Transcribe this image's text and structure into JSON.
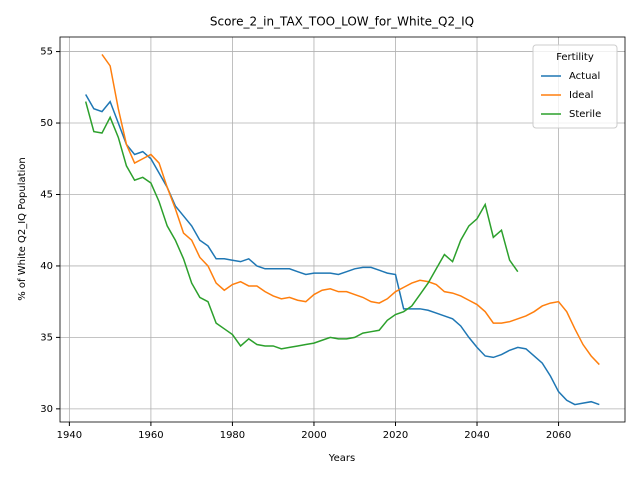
{
  "chart_data": {
    "type": "line",
    "title": "Score_2_in_TAX_TOO_LOW_for_White_Q2_IQ",
    "x_label": "Years",
    "y_label": "% of White Q2_IQ Population",
    "legend_title": "Fertility",
    "legend": "upper right",
    "grid": true,
    "x": [
      1944,
      1946,
      1948,
      1950,
      1952,
      1954,
      1956,
      1958,
      1960,
      1962,
      1964,
      1966,
      1968,
      1970,
      1972,
      1974,
      1976,
      1978,
      1980,
      1982,
      1984,
      1986,
      1988,
      1990,
      1992,
      1994,
      1996,
      1998,
      2000,
      2002,
      2004,
      2006,
      2008,
      2010,
      2012,
      2014,
      2016,
      2018,
      2020,
      2022,
      2024,
      2026,
      2028,
      2030,
      2032,
      2034,
      2036,
      2038,
      2040,
      2042,
      2044,
      2046,
      2048,
      2050,
      2052,
      2054,
      2056,
      2058,
      2060,
      2062,
      2064,
      2066,
      2068,
      2070
    ],
    "series": [
      {
        "name": "Actual",
        "color": "#1f77b4",
        "values": [
          52.0,
          51.0,
          50.8,
          51.5,
          50.0,
          48.5,
          47.8,
          48.0,
          47.5,
          46.5,
          45.5,
          44.2,
          43.5,
          42.8,
          41.8,
          41.4,
          40.5,
          40.5,
          40.4,
          40.3,
          40.5,
          40.0,
          39.8,
          39.8,
          39.8,
          39.8,
          39.6,
          39.4,
          39.5,
          39.5,
          39.5,
          39.4,
          39.6,
          39.8,
          39.9,
          39.9,
          39.7,
          39.5,
          39.4,
          37.0,
          37.0,
          37.0,
          36.9,
          36.7,
          36.5,
          36.3,
          35.8,
          35.0,
          34.3,
          33.7,
          33.6,
          33.8,
          34.1,
          34.3,
          34.2,
          33.7,
          33.2,
          32.3,
          31.2,
          30.6,
          30.3,
          30.4,
          30.5,
          30.3
        ]
      },
      {
        "name": "Ideal",
        "color": "#ff7f0e",
        "values": [
          null,
          null,
          54.8,
          54.0,
          51.0,
          48.5,
          47.2,
          47.5,
          47.8,
          47.2,
          45.5,
          44.0,
          42.3,
          41.8,
          40.6,
          40.0,
          38.8,
          38.3,
          38.7,
          38.9,
          38.6,
          38.6,
          38.2,
          37.9,
          37.7,
          37.8,
          37.6,
          37.5,
          38.0,
          38.3,
          38.4,
          38.2,
          38.2,
          38.0,
          37.8,
          37.5,
          37.4,
          37.7,
          38.2,
          38.5,
          38.8,
          39.0,
          38.9,
          38.7,
          38.2,
          38.1,
          37.9,
          37.6,
          37.3,
          36.8,
          36.0,
          36.0,
          36.1,
          36.3,
          36.5,
          36.8,
          37.2,
          37.4,
          37.5,
          36.8,
          35.6,
          34.5,
          33.7,
          33.1
        ]
      },
      {
        "name": "Sterile",
        "color": "#2ca02c",
        "values": [
          51.5,
          49.4,
          49.3,
          50.4,
          49.0,
          47.0,
          46.0,
          46.2,
          45.8,
          44.5,
          42.8,
          41.8,
          40.5,
          38.8,
          37.8,
          37.5,
          36.0,
          35.6,
          35.2,
          34.4,
          34.9,
          34.5,
          34.4,
          34.4,
          34.2,
          34.3,
          34.4,
          34.5,
          34.6,
          34.8,
          35.0,
          34.9,
          34.9,
          35.0,
          35.3,
          35.4,
          35.5,
          36.2,
          36.6,
          36.8,
          37.2,
          38.0,
          38.8,
          39.8,
          40.8,
          40.3,
          41.8,
          42.8,
          43.3,
          44.3,
          42.0,
          42.5,
          40.4,
          39.6,
          null,
          null,
          null,
          null,
          null,
          null,
          null,
          null,
          null,
          null
        ]
      }
    ],
    "xlim": [
      1937.7,
      2076.3
    ],
    "xticks": [
      1940,
      1960,
      1980,
      2000,
      2020,
      2040,
      2060
    ],
    "ylim": [
      29.08,
      56.02
    ],
    "yticks": [
      30,
      35,
      40,
      45,
      50,
      55
    ]
  }
}
